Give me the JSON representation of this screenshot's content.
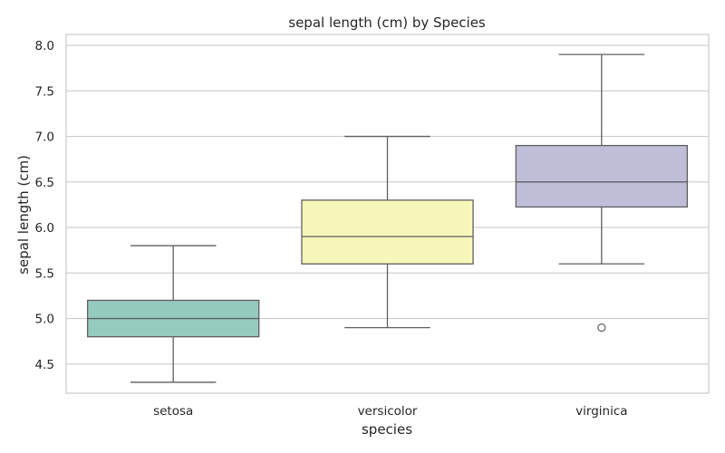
{
  "chart_data": {
    "type": "box",
    "title": "sepal length (cm) by Species",
    "xlabel": "species",
    "ylabel": "sepal length (cm)",
    "ylim": [
      4.18,
      8.12
    ],
    "yticks": [
      "4.5",
      "5.0",
      "5.5",
      "6.0",
      "6.5",
      "7.0",
      "7.5",
      "8.0"
    ],
    "grid": true,
    "categories": [
      "setosa",
      "versicolor",
      "virginica"
    ],
    "series": [
      {
        "category": "setosa",
        "whisker_low": 4.3,
        "q1": 4.8,
        "median": 5.0,
        "q3": 5.2,
        "whisker_high": 5.8,
        "outliers": [],
        "color": "#95cbbf"
      },
      {
        "category": "versicolor",
        "whisker_low": 4.9,
        "q1": 5.6,
        "median": 5.9,
        "q3": 6.3,
        "whisker_high": 7.0,
        "outliers": [],
        "color": "#f7f7bb"
      },
      {
        "category": "virginica",
        "whisker_low": 5.6,
        "q1": 6.225,
        "median": 6.5,
        "q3": 6.9,
        "whisker_high": 7.9,
        "outliers": [
          4.9
        ],
        "color": "#c0bdd9"
      }
    ]
  }
}
